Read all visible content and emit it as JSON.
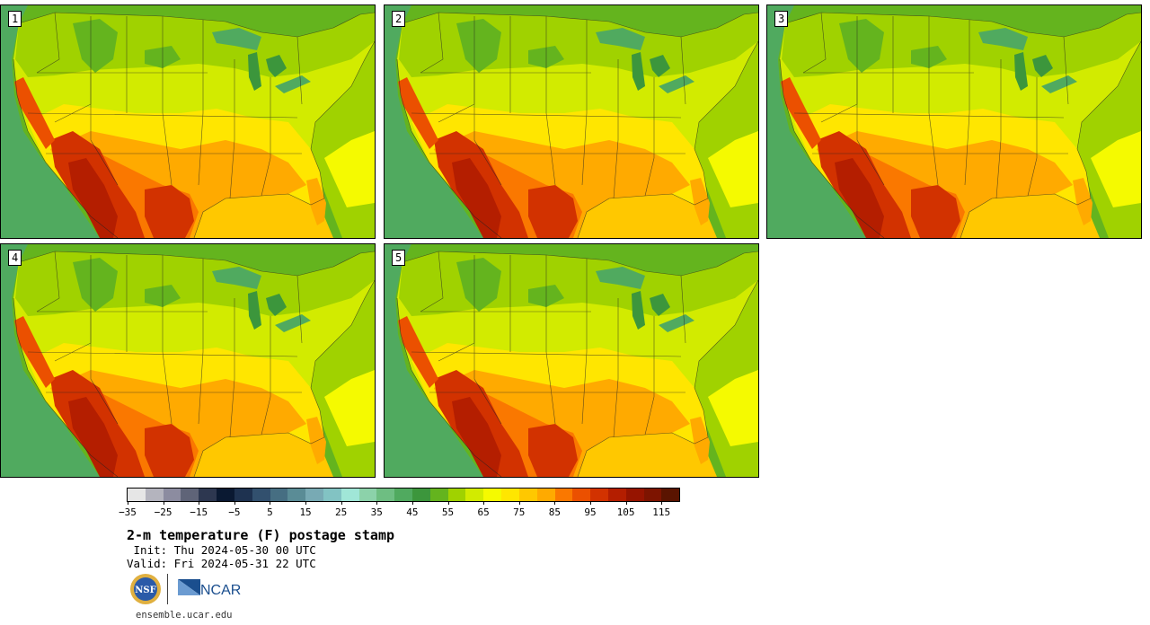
{
  "panels": [
    {
      "label": "1"
    },
    {
      "label": "2"
    },
    {
      "label": "3"
    },
    {
      "label": "4"
    },
    {
      "label": "5"
    }
  ],
  "colorbar": {
    "colors": [
      "#e6e6e6",
      "#b4b4be",
      "#8c8ca0",
      "#5f6478",
      "#2d3750",
      "#0a1932",
      "#1e3250",
      "#32506e",
      "#466e82",
      "#5a8c96",
      "#78aab4",
      "#82c3c3",
      "#a0e6d7",
      "#8cd2aa",
      "#6ebe82",
      "#50aa5f",
      "#3c963c",
      "#64b41e",
      "#a0d200",
      "#d2eb00",
      "#f5fa00",
      "#ffe600",
      "#ffc800",
      "#ffaa00",
      "#fa7800",
      "#eb5000",
      "#d23200",
      "#b41e00",
      "#961400",
      "#7d1400",
      "#5a1400"
    ],
    "tick_labels": [
      "−35",
      "−25",
      "−15",
      "−5",
      "5",
      "15",
      "25",
      "35",
      "45",
      "55",
      "65",
      "75",
      "85",
      "95",
      "105",
      "115"
    ],
    "colors_meaning": "temperature bins"
  },
  "title": "2-m temperature (F) postage stamp",
  "init": " Init: Thu 2024-05-30 00 UTC",
  "valid": "Valid: Fri 2024-05-31 22 UTC",
  "logos": {
    "nsf_icon": "nsf-logo-icon",
    "ncar_text": "NCAR"
  },
  "site": "ensemble.ucar.edu"
}
